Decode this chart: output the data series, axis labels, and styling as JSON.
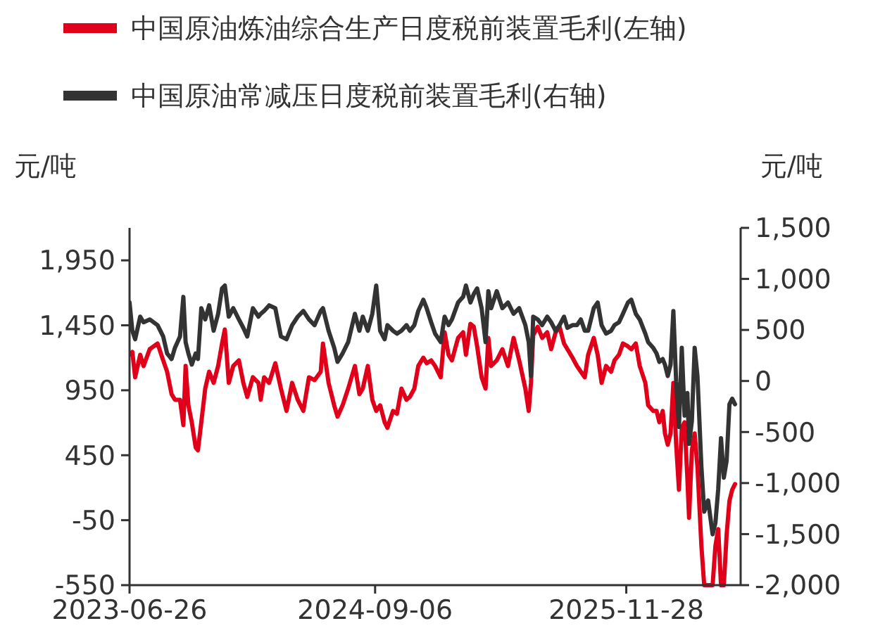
{
  "chart_data": {
    "type": "line",
    "ylabel": "元/吨",
    "y2label": "元/吨",
    "legend": "top left",
    "grid": false,
    "line_style": "solid",
    "marker": "none",
    "x": [
      "2023-06-26",
      "2023-07-01",
      "2023-07-06",
      "2023-07-15",
      "2023-07-21",
      "2023-08-01",
      "2023-08-15",
      "2023-08-25",
      "2023-09-01",
      "2023-09-09",
      "2023-09-15",
      "2023-09-24",
      "2023-09-30",
      "2023-10-04",
      "2023-10-09",
      "2023-10-15",
      "2023-10-22",
      "2023-10-26",
      "2023-11-01",
      "2023-11-08",
      "2023-11-15",
      "2023-11-23",
      "2023-12-01",
      "2023-12-08",
      "2023-12-13",
      "2023-12-20",
      "2023-12-28",
      "2024-01-07",
      "2024-01-15",
      "2024-01-22",
      "2024-02-01",
      "2024-02-11",
      "2024-02-15",
      "2024-02-21",
      "2024-03-01",
      "2024-03-12",
      "2024-03-22",
      "2024-04-01",
      "2024-04-11",
      "2024-04-21",
      "2024-05-01",
      "2024-05-11",
      "2024-05-21",
      "2024-06-01",
      "2024-06-05",
      "2024-06-15",
      "2024-06-25",
      "2024-07-01",
      "2024-07-10",
      "2024-07-20",
      "2024-08-01",
      "2024-08-09",
      "2024-08-15",
      "2024-08-24",
      "2024-09-01",
      "2024-09-08",
      "2024-09-15",
      "2024-09-23",
      "2024-09-28",
      "2024-10-08",
      "2024-10-15",
      "2024-10-23",
      "2024-11-01",
      "2024-11-07",
      "2024-11-15",
      "2024-11-22",
      "2024-12-01",
      "2024-12-07",
      "2024-12-15",
      "2024-12-22",
      "2025-01-01",
      "2025-01-08",
      "2025-01-15",
      "2025-01-21",
      "2025-02-01",
      "2025-02-10",
      "2025-02-15",
      "2025-02-23",
      "2025-03-01",
      "2025-03-07",
      "2025-03-15",
      "2025-03-22",
      "2025-03-27",
      "2025-04-01",
      "2025-04-11",
      "2025-04-21",
      "2025-05-01",
      "2025-05-11",
      "2025-05-21",
      "2025-06-01",
      "2025-06-07",
      "2025-06-11",
      "2025-06-15",
      "2025-06-23",
      "2025-07-01",
      "2025-07-10",
      "2025-07-17",
      "2025-07-25",
      "2025-08-01",
      "2025-08-09",
      "2025-08-15",
      "2025-08-24",
      "2025-09-01",
      "2025-09-08",
      "2025-09-15",
      "2025-09-21",
      "2025-10-01",
      "2025-10-08",
      "2025-10-15",
      "2025-10-23",
      "2025-11-01",
      "2025-11-07",
      "2025-11-15",
      "2025-11-22",
      "2025-12-01",
      "2025-12-07",
      "2025-12-15",
      "2025-12-22",
      "2026-01-01",
      "2026-01-06",
      "2026-01-15",
      "2026-01-21",
      "2026-01-26",
      "2026-02-01",
      "2026-02-05",
      "2026-02-10",
      "2026-02-15",
      "2026-02-20",
      "2026-02-25",
      "2026-03-02",
      "2026-03-07",
      "2026-03-12",
      "2026-03-17",
      "2026-03-20",
      "2026-03-25",
      "2026-03-30",
      "2026-04-04",
      "2026-04-11",
      "2026-04-16",
      "2026-04-23",
      "2026-05-01",
      "2026-05-06",
      "2026-05-11",
      "2026-05-16",
      "2026-05-21",
      "2026-05-26",
      "2026-05-31",
      "2026-06-05",
      "2026-06-10"
    ],
    "xlim": [
      "2023-06-26",
      "2026-06-20"
    ],
    "xticks": [
      "2023-06-26",
      "2024-09-06",
      "2025-11-28"
    ],
    "ylim": [
      -550,
      2200
    ],
    "yticks": [
      -550,
      -50,
      450,
      950,
      {
        "value": 1450,
        "label": "1,450"
      },
      {
        "value": 1950,
        "label": "1,950"
      }
    ],
    "y2lim": [
      -2000,
      1500
    ],
    "y2ticks": [
      {
        "value": -2000,
        "label": "-2,000"
      },
      {
        "value": -1500,
        "label": "-1,500"
      },
      {
        "value": -1000,
        "label": "-1,000"
      },
      -500,
      0,
      500,
      {
        "value": 1000,
        "label": "1,000"
      },
      {
        "value": 1500,
        "label": "1,500"
      }
    ],
    "series": [
      {
        "name": "中国原油炼油综合生产日度税前装置毛利(左轴)",
        "color": "#e0001a",
        "values": [
          1223,
          1245,
          1050,
          1223,
          1137,
          1266,
          1310,
          1180,
          1093,
          920,
          877,
          877,
          682,
          1137,
          834,
          704,
          509,
          488,
          704,
          963,
          1093,
          1007,
          1137,
          1310,
          1418,
          1007,
          1137,
          1180,
          1007,
          899,
          1050,
          1007,
          877,
          1050,
          1007,
          1158,
          963,
          791,
          1007,
          877,
          791,
          1050,
          1028,
          1093,
          1310,
          1007,
          834,
          747,
          834,
          963,
          1137,
          920,
          963,
          1137,
          877,
          791,
          834,
          704,
          661,
          791,
          769,
          963,
          877,
          899,
          963,
          1137,
          1201,
          1158,
          1180,
          1137,
          1050,
          1396,
          1223,
          1180,
          1353,
          1396,
          1223,
          1461,
          1439,
          1288,
          1050,
          963,
          1353,
          1137,
          1180,
          1266,
          1137,
          1353,
          1180,
          963,
          791,
          1007,
          1374,
          1439,
          1353,
          1396,
          1266,
          1396,
          1439,
          1310,
          1266,
          1201,
          1137,
          1093,
          1050,
          1223,
          1353,
          1223,
          1007,
          1137,
          1093,
          1180,
          1223,
          1310,
          1288,
          1266,
          1310,
          1137,
          1007,
          834,
          791,
          791,
          704,
          791,
          618,
          531,
          618,
          1007,
          531,
          185,
          661,
          704,
          271,
          -31,
          488,
          618,
          358,
          -248,
          -550,
          -550,
          -550,
          -248,
          -118,
          -550,
          -550,
          -161,
          98,
          185,
          228
        ]
      },
      {
        "name": "中国原油常减压日度税前装置毛利(右轴)",
        "color": "#333333",
        "axis": "y2",
        "values": [
          769,
          492,
          409,
          630,
          575,
          603,
          547,
          436,
          270,
          215,
          326,
          436,
          824,
          381,
          270,
          160,
          270,
          215,
          713,
          603,
          741,
          492,
          658,
          907,
          935,
          630,
          713,
          603,
          520,
          436,
          713,
          630,
          658,
          686,
          741,
          713,
          436,
          409,
          547,
          630,
          686,
          603,
          547,
          686,
          713,
          492,
          326,
          187,
          270,
          381,
          658,
          492,
          630,
          492,
          658,
          935,
          492,
          409,
          547,
          492,
          464,
          492,
          547,
          492,
          547,
          686,
          796,
          713,
          575,
          464,
          381,
          630,
          547,
          603,
          769,
          824,
          935,
          769,
          852,
          907,
          713,
          381,
          880,
          713,
          880,
          713,
          769,
          658,
          713,
          547,
          381,
          49,
          630,
          603,
          547,
          630,
          575,
          492,
          547,
          630,
          520,
          547,
          547,
          603,
          492,
          492,
          713,
          769,
          547,
          464,
          492,
          547,
          575,
          658,
          769,
          796,
          658,
          603,
          464,
          381,
          326,
          270,
          187,
          215,
          160,
          49,
          160,
          686,
          -7,
          -450,
          326,
          -339,
          -117,
          -616,
          -394,
          326,
          49,
          -837,
          -1280,
          -1170,
          -1502,
          -1391,
          -1059,
          -560,
          -948,
          -782,
          -228,
          -173,
          -228
        ]
      }
    ]
  }
}
